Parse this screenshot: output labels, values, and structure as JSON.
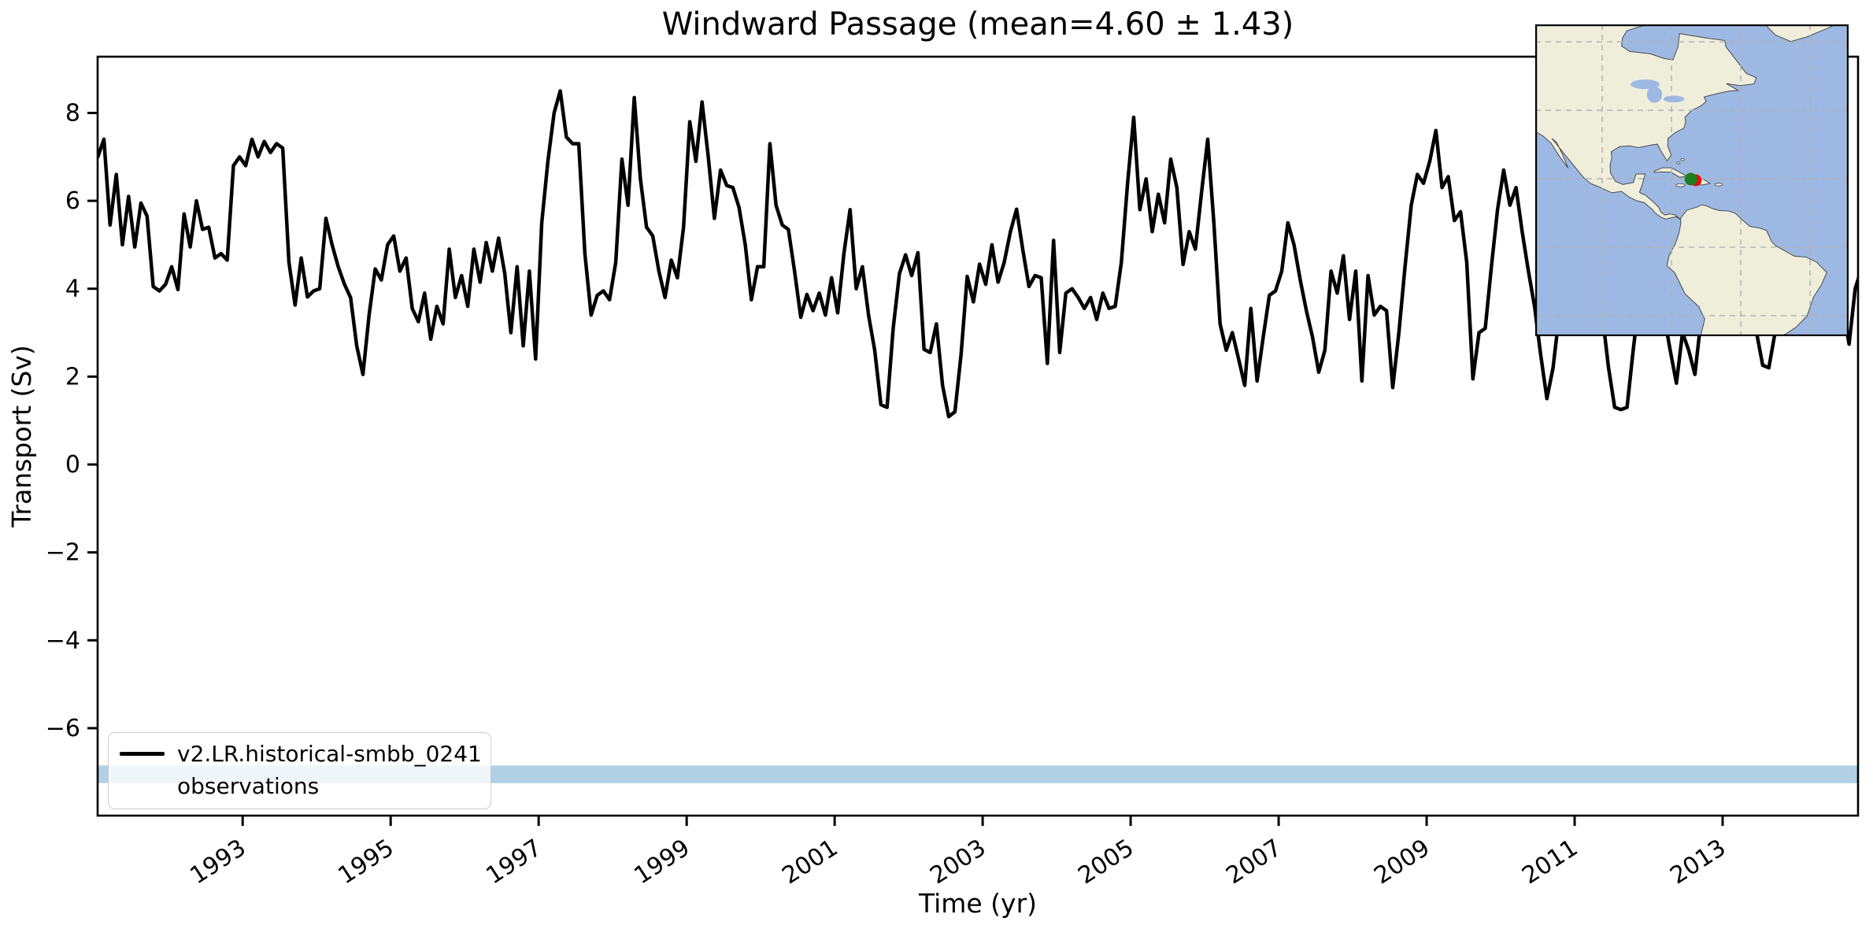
{
  "figure": {
    "title": "Windward Passage (mean=4.60 ± 1.43)",
    "xlabel": "Time (yr)",
    "ylabel": "Transport (Sv)"
  },
  "legend": {
    "entries": [
      {
        "label": "v2.LR.historical-smbb_0241",
        "type": "line",
        "color": "#000000"
      },
      {
        "label": "observations",
        "type": "patch",
        "color": "#b1cfe5"
      }
    ]
  },
  "chart_data": {
    "type": "line",
    "title": "Windward Passage (mean=4.60 ± 1.43)",
    "xlabel": "Time (yr)",
    "ylabel": "Transport (Sv)",
    "xlim": [
      1991.04,
      2014.83
    ],
    "ylim": [
      -7.99,
      9.28
    ],
    "x_ticks": [
      1993,
      1995,
      1997,
      1999,
      2001,
      2003,
      2005,
      2007,
      2009,
      2011,
      2013
    ],
    "x_tick_labels": [
      "1993",
      "1995",
      "1997",
      "1999",
      "2001",
      "2003",
      "2005",
      "2007",
      "2009",
      "2011",
      "2013"
    ],
    "y_ticks": [
      8,
      6,
      4,
      2,
      0,
      -2,
      -4,
      -6
    ],
    "y_tick_labels": [
      "8",
      "6",
      "4",
      "2",
      "0",
      "−2",
      "−4",
      "−6"
    ],
    "grid": false,
    "legend_position": "lower-left",
    "stats": {
      "mean_sv": 4.6,
      "std_sv": 1.43
    },
    "observations_band": {
      "label": "observations",
      "range_sv": [
        -7.25,
        -6.85
      ],
      "color": "#b1cfe5"
    },
    "series": [
      {
        "name": "v2.LR.historical-smbb_0241",
        "color": "#000000",
        "line_width": 4.5,
        "cadence": "monthly",
        "start_year": 1991,
        "end_year": 2014,
        "values": [
          7.0,
          7.4,
          5.45,
          6.6,
          5.0,
          6.1,
          4.95,
          5.95,
          5.65,
          4.05,
          3.95,
          4.1,
          4.5,
          3.98,
          5.7,
          4.95,
          6.0,
          5.35,
          5.4,
          4.7,
          4.8,
          4.65,
          6.8,
          7.0,
          6.8,
          7.4,
          7.0,
          7.35,
          7.1,
          7.3,
          7.2,
          4.6,
          3.63,
          4.7,
          3.81,
          3.95,
          4.0,
          5.6,
          5.0,
          4.5,
          4.1,
          3.8,
          2.7,
          2.05,
          3.4,
          4.45,
          4.2,
          5.0,
          5.2,
          4.4,
          4.7,
          3.55,
          3.25,
          3.9,
          2.85,
          3.6,
          3.2,
          4.9,
          3.8,
          4.3,
          3.6,
          4.9,
          4.15,
          5.05,
          4.4,
          5.15,
          4.35,
          3.0,
          4.5,
          2.7,
          4.4,
          2.4,
          5.5,
          6.9,
          8.0,
          8.5,
          7.45,
          7.3,
          7.3,
          4.8,
          3.4,
          3.85,
          3.95,
          3.75,
          4.6,
          6.95,
          5.9,
          8.35,
          6.5,
          5.4,
          5.2,
          4.4,
          3.8,
          4.65,
          4.25,
          5.4,
          7.8,
          6.9,
          8.25,
          7.0,
          5.6,
          6.7,
          6.35,
          6.3,
          5.85,
          5.0,
          3.75,
          4.5,
          4.5,
          7.3,
          5.9,
          5.45,
          5.35,
          4.4,
          3.35,
          3.87,
          3.5,
          3.9,
          3.4,
          4.25,
          3.45,
          4.8,
          5.8,
          4.0,
          4.5,
          3.4,
          2.6,
          1.36,
          1.3,
          3.1,
          4.34,
          4.77,
          4.3,
          4.82,
          2.62,
          2.55,
          3.2,
          1.8,
          1.09,
          1.2,
          2.5,
          4.28,
          3.7,
          4.56,
          4.1,
          5.0,
          4.15,
          4.6,
          5.3,
          5.81,
          4.9,
          4.05,
          4.3,
          4.25,
          2.3,
          5.1,
          2.55,
          3.9,
          4.0,
          3.8,
          3.55,
          3.8,
          3.3,
          3.9,
          3.55,
          3.6,
          4.6,
          6.4,
          7.9,
          5.8,
          6.5,
          5.3,
          6.15,
          5.5,
          6.95,
          6.3,
          4.55,
          5.3,
          4.9,
          6.2,
          7.4,
          5.5,
          3.2,
          2.6,
          3.0,
          2.4,
          1.8,
          3.55,
          1.9,
          2.9,
          3.85,
          3.95,
          4.4,
          5.5,
          5.0,
          4.2,
          3.5,
          2.9,
          2.1,
          2.6,
          4.4,
          3.9,
          4.75,
          3.3,
          4.4,
          1.9,
          4.3,
          3.4,
          3.6,
          3.5,
          1.75,
          3.0,
          4.5,
          5.9,
          6.6,
          6.4,
          6.9,
          7.6,
          6.3,
          6.55,
          5.55,
          5.75,
          4.6,
          1.95,
          3.0,
          3.1,
          4.5,
          5.8,
          6.7,
          5.9,
          6.3,
          5.3,
          4.4,
          3.6,
          2.5,
          1.5,
          2.2,
          3.4,
          4.3,
          4.6,
          5.2,
          4.4,
          4.9,
          4.2,
          3.4,
          2.2,
          1.3,
          1.25,
          1.3,
          2.6,
          3.8,
          4.4,
          4.9,
          4.2,
          3.4,
          2.6,
          1.85,
          3.0,
          2.6,
          2.05,
          3.3,
          4.1,
          4.7,
          5.2,
          5.6,
          5.0,
          5.5,
          4.6,
          3.9,
          3.0,
          2.26,
          2.2,
          3.0,
          3.6,
          4.4,
          5.0,
          5.3,
          4.7,
          5.1,
          4.4,
          3.8,
          3.3,
          4.2,
          3.6,
          2.74,
          4.0,
          4.45,
          3.9
        ]
      }
    ]
  },
  "inset_map": {
    "description": "Caribbean / Americas locator map",
    "extent": {
      "lon": [
        -119.3,
        -28.9
      ],
      "lat": [
        -26.0,
        65.1
      ]
    },
    "gridlines": {
      "lons": [
        -100,
        -80,
        -60,
        -40
      ],
      "lats": [
        60,
        40,
        20,
        0,
        -20
      ]
    },
    "markers": [
      {
        "name": "obs-location",
        "color": "#dd1111",
        "lon": -73.0,
        "lat": 19.55,
        "r": 7.5
      },
      {
        "name": "model-location",
        "color": "#1e7d1e",
        "lon": -74.4,
        "lat": 19.9,
        "r": 8.0
      }
    ],
    "colors": {
      "ocean": "#9db9e3",
      "land": "#efeedb",
      "coast": "#4a4a4a",
      "grid": "#b0b0b0",
      "border": "#000000"
    }
  }
}
